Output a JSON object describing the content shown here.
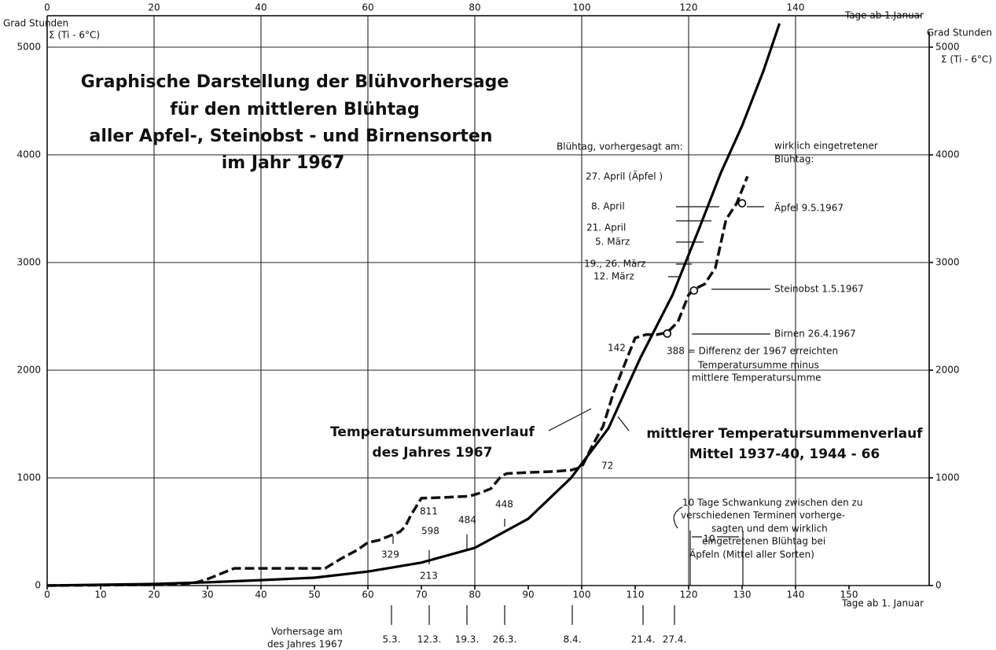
{
  "chart_data": {
    "type": "line",
    "title_lines": [
      "Graphische Darstellung der Blühvorhersage",
      "für den mittleren Blühtag",
      "aller Apfel-, Steinobst - und Birnensorten",
      "im Jahr 1967"
    ],
    "y_label": "Grad Stunden",
    "y_label_formula": "Σ (Ti - 6°C)",
    "y2_label": "Grad Stunden",
    "y2_label_formula": "Σ (Ti - 6°C)",
    "x_label": "Tage ab 1. Januar",
    "x2_label": "Tage ab 1.Januar",
    "xlim": [
      0,
      165
    ],
    "xticks": [
      0,
      10,
      20,
      30,
      40,
      50,
      60,
      70,
      80,
      90,
      100,
      110,
      120,
      130,
      140,
      150
    ],
    "x2ticks": [
      0,
      20,
      40,
      60,
      80,
      100,
      120,
      140
    ],
    "ylim": [
      0,
      5000
    ],
    "yticks": [
      0,
      1000,
      2000,
      3000,
      4000,
      5000
    ],
    "y2lim": [
      0,
      5000
    ],
    "y2ticks": [
      0,
      1000,
      2000,
      3000,
      4000,
      5000
    ],
    "grid": true,
    "series": [
      {
        "label_lines": [
          "Temperatursummenverlauf",
          "des Jahres 1967"
        ],
        "color": "#111111",
        "dashed": true,
        "x": [
          0,
          25,
          28,
          30,
          33,
          35,
          40,
          52,
          55,
          58,
          60,
          62,
          64,
          66,
          67,
          68,
          70,
          75,
          79,
          81,
          83,
          85,
          86,
          90,
          95,
          98,
          100,
          102,
          104,
          106,
          108,
          110,
          112,
          114,
          116,
          118,
          120,
          121,
          123,
          125,
          127,
          129,
          131
        ],
        "values": [
          0,
          10,
          30,
          60,
          120,
          160,
          160,
          160,
          250,
          330,
          400,
          420,
          460,
          500,
          550,
          650,
          811,
          820,
          830,
          860,
          900,
          1020,
          1040,
          1050,
          1060,
          1072,
          1100,
          1300,
          1480,
          1800,
          2050,
          2300,
          2330,
          2330,
          2350,
          2450,
          2700,
          2750,
          2800,
          2950,
          3400,
          3550,
          3800
        ]
      },
      {
        "label_lines": [
          "mittlerer Temperatursummenverlauf",
          "Mittel 1937-40, 1944 - 66"
        ],
        "color": "#000000",
        "dashed": false,
        "x": [
          0,
          20,
          30,
          40,
          50,
          60,
          70,
          80,
          90,
          98,
          105,
          108,
          111,
          117,
          122,
          126,
          130,
          134,
          137
        ],
        "values": [
          0,
          15,
          30,
          50,
          73,
          130,
          213,
          350,
          620,
          1000,
          1460,
          1790,
          2117,
          2700,
          3320,
          3830,
          4270,
          4780,
          5220
        ]
      }
    ],
    "bloom_points": [
      {
        "label": "Äpfel  9.5.1967",
        "day": 130,
        "value": 3550
      },
      {
        "label": "Steinobst  1.5.1967",
        "day": 121,
        "value": 2740
      },
      {
        "label": "Birnen  26.4.1967",
        "day": 116,
        "value": 2340
      }
    ],
    "annotations": [
      "Blühtag, vorhergesagt am:",
      "27. April (Äpfel )",
      "8. April",
      "21. April",
      "5. März",
      "19., 26. März",
      "12. März",
      "wirklich eingetretener",
      "Blühtag:",
      "388 = Differenz der 1967 erreichten",
      "Temperatursumme minus",
      "mittlere Temperatursumme",
      "142",
      "72",
      "811",
      "598",
      "484",
      "448",
      "329",
      "213",
      "10 Tage Schwankung zwischen den zu",
      "verschiedenen Terminen vorherge-",
      "sagten und dem wirklich",
      "eingetretenen Blühtag bei",
      "Äpfeln (Mittel aller Sorten)",
      "10",
      "Vorhersage am",
      "des Jahres 1967"
    ],
    "forecast_dates": [
      "5.3.",
      "12.3.",
      "19.3.",
      "26.3.",
      "8.4.",
      "21.4.",
      "27.4."
    ]
  }
}
